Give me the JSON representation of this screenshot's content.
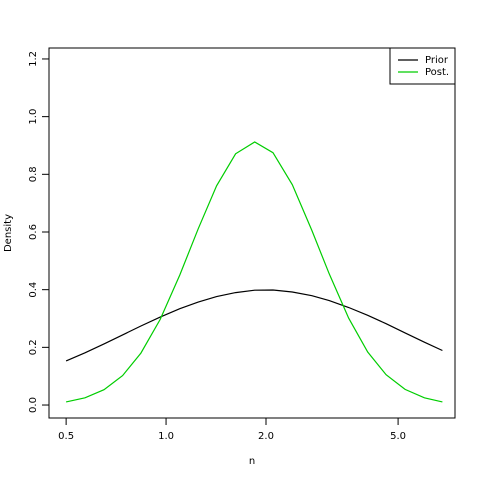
{
  "chart_data": {
    "type": "line",
    "x_label": "n",
    "y_label": "Density",
    "x": [
      0.5,
      0.57,
      0.65,
      0.74,
      0.84,
      0.96,
      1.1,
      1.25,
      1.42,
      1.62,
      1.85,
      2.1,
      2.4,
      2.75,
      3.1,
      3.55,
      4.05,
      4.6,
      5.25,
      6.0,
      6.8
    ],
    "series": [
      {
        "name": "Prior",
        "color": "#000000",
        "values": [
          0.153,
          0.181,
          0.212,
          0.243,
          0.274,
          0.305,
          0.334,
          0.357,
          0.376,
          0.39,
          0.398,
          0.399,
          0.392,
          0.379,
          0.362,
          0.338,
          0.311,
          0.282,
          0.25,
          0.218,
          0.189
        ]
      },
      {
        "name": "Post.",
        "color": "#00cd00",
        "values": [
          0.011,
          0.025,
          0.053,
          0.102,
          0.18,
          0.297,
          0.451,
          0.611,
          0.76,
          0.871,
          0.912,
          0.875,
          0.764,
          0.605,
          0.455,
          0.301,
          0.184,
          0.105,
          0.054,
          0.025,
          0.011
        ]
      }
    ],
    "xlim": [
      0.444,
      7.42
    ],
    "x_log": true,
    "xticks": [
      0.5,
      {
        "value": 1,
        "label": "1.0"
      },
      {
        "value": 2,
        "label": "2.0"
      },
      {
        "value": 5,
        "label": "5.0"
      }
    ],
    "ylim": [
      -0.045,
      1.238
    ],
    "yticks": [
      {
        "value": 0,
        "label": "0.0"
      },
      0.2,
      0.4,
      0.6,
      0.8,
      {
        "value": 1,
        "label": "1.0"
      },
      1.2
    ],
    "legend": "top-right"
  }
}
